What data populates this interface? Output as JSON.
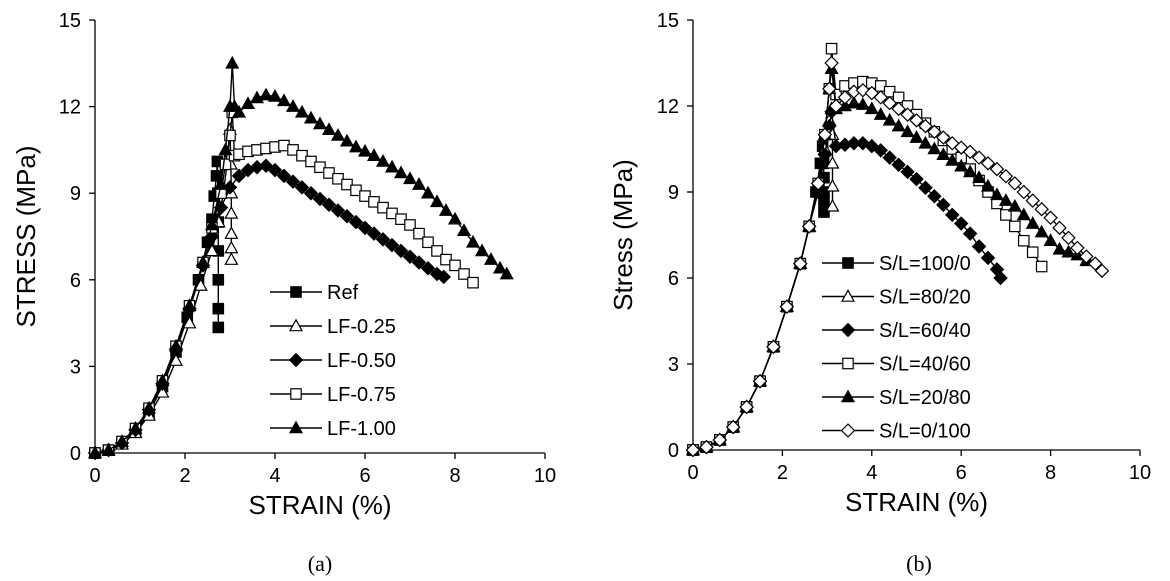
{
  "chart_data": [
    {
      "type": "line",
      "panel": "(a)",
      "xlabel": "STRAIN (%)",
      "ylabel": "STRESS (MPa)",
      "xlim": [
        0,
        10
      ],
      "ylim": [
        0,
        15
      ],
      "xticks": [
        0,
        2,
        4,
        6,
        8,
        10
      ],
      "yticks": [
        0,
        3,
        6,
        9,
        12,
        15
      ],
      "grid": false,
      "legend_placement": "bottom-right",
      "line_color": "#000000",
      "series": [
        {
          "name": "Ref",
          "marker": "square-filled",
          "x": [
            0,
            0.3,
            0.6,
            0.9,
            1.2,
            1.5,
            1.8,
            2.05,
            2.3,
            2.5,
            2.6,
            2.65,
            2.7,
            2.72,
            2.73,
            2.74,
            2.74,
            2.74,
            2.74,
            2.74
          ],
          "y": [
            0,
            0.1,
            0.35,
            0.75,
            1.4,
            2.3,
            3.5,
            4.7,
            6.0,
            7.3,
            8.1,
            8.9,
            9.6,
            10.1,
            9.0,
            8.0,
            7.0,
            6.0,
            5.0,
            4.35
          ]
        },
        {
          "name": "LF-0.25",
          "marker": "triangle-open",
          "x": [
            0,
            0.3,
            0.6,
            0.9,
            1.2,
            1.5,
            1.8,
            2.1,
            2.35,
            2.6,
            2.75,
            2.85,
            2.95,
            3.0,
            3.02,
            3.03,
            3.03,
            3.03,
            3.03,
            3.03
          ],
          "y": [
            0,
            0.08,
            0.3,
            0.7,
            1.3,
            2.1,
            3.2,
            4.5,
            5.8,
            7.0,
            8.0,
            9.0,
            10.2,
            11.2,
            10.0,
            9.0,
            8.3,
            7.6,
            7.1,
            6.7
          ]
        },
        {
          "name": "LF-0.50",
          "marker": "diamond-filled",
          "x": [
            0,
            0.3,
            0.6,
            0.9,
            1.2,
            1.5,
            1.8,
            2.1,
            2.4,
            2.6,
            2.8,
            3.0,
            3.2,
            3.4,
            3.6,
            3.8,
            4.0,
            4.2,
            4.4,
            4.6,
            4.8,
            5.0,
            5.2,
            5.4,
            5.6,
            5.8,
            6.0,
            6.2,
            6.4,
            6.6,
            6.8,
            7.0,
            7.2,
            7.4,
            7.6,
            7.75
          ],
          "y": [
            0,
            0.1,
            0.35,
            0.8,
            1.5,
            2.4,
            3.6,
            5.0,
            6.5,
            7.5,
            8.5,
            9.2,
            9.6,
            9.8,
            9.9,
            9.95,
            9.8,
            9.6,
            9.4,
            9.2,
            9.0,
            8.8,
            8.6,
            8.4,
            8.2,
            8.0,
            7.8,
            7.6,
            7.4,
            7.2,
            7.0,
            6.8,
            6.6,
            6.4,
            6.2,
            6.1
          ]
        },
        {
          "name": "LF-0.75",
          "marker": "square-open",
          "x": [
            0,
            0.3,
            0.6,
            0.9,
            1.2,
            1.5,
            1.8,
            2.1,
            2.4,
            2.6,
            2.8,
            2.9,
            3.0,
            3.05,
            3.1,
            3.2,
            3.4,
            3.6,
            3.8,
            4.0,
            4.2,
            4.4,
            4.6,
            4.8,
            5.0,
            5.2,
            5.4,
            5.6,
            5.8,
            6.0,
            6.2,
            6.4,
            6.6,
            6.8,
            7.0,
            7.2,
            7.4,
            7.6,
            7.8,
            8.0,
            8.2,
            8.4
          ],
          "y": [
            0,
            0.1,
            0.4,
            0.85,
            1.55,
            2.5,
            3.7,
            5.1,
            6.6,
            7.8,
            9.0,
            10.0,
            11.0,
            11.8,
            10.3,
            10.35,
            10.45,
            10.5,
            10.55,
            10.6,
            10.65,
            10.5,
            10.3,
            10.1,
            9.9,
            9.7,
            9.5,
            9.3,
            9.1,
            8.9,
            8.7,
            8.5,
            8.3,
            8.1,
            7.9,
            7.6,
            7.3,
            7.0,
            6.7,
            6.5,
            6.2,
            5.9
          ]
        },
        {
          "name": "LF-1.00",
          "marker": "triangle-filled",
          "x": [
            0,
            0.3,
            0.6,
            0.9,
            1.2,
            1.5,
            1.8,
            2.1,
            2.4,
            2.6,
            2.8,
            2.9,
            3.0,
            3.05,
            3.1,
            3.2,
            3.4,
            3.6,
            3.8,
            4.0,
            4.2,
            4.4,
            4.6,
            4.8,
            5.0,
            5.2,
            5.4,
            5.6,
            5.8,
            6.0,
            6.2,
            6.4,
            6.6,
            6.8,
            7.0,
            7.2,
            7.4,
            7.6,
            7.8,
            8.0,
            8.2,
            8.4,
            8.6,
            8.8,
            9.0,
            9.15
          ],
          "y": [
            0,
            0.1,
            0.4,
            0.85,
            1.55,
            2.5,
            3.7,
            5.1,
            6.6,
            7.9,
            9.3,
            10.5,
            12.0,
            13.5,
            12.0,
            11.8,
            12.1,
            12.3,
            12.4,
            12.35,
            12.2,
            12.0,
            11.8,
            11.6,
            11.4,
            11.2,
            11.0,
            10.8,
            10.6,
            10.45,
            10.3,
            10.1,
            9.9,
            9.7,
            9.5,
            9.3,
            9.0,
            8.7,
            8.4,
            8.1,
            7.7,
            7.3,
            7.0,
            6.7,
            6.4,
            6.2
          ]
        }
      ]
    },
    {
      "type": "line",
      "panel": "(b)",
      "xlabel": "STRAIN (%)",
      "ylabel": "Stress (MPa)",
      "xlim": [
        0,
        10
      ],
      "ylim": [
        0,
        15
      ],
      "xticks": [
        0,
        2,
        4,
        6,
        8,
        10
      ],
      "yticks": [
        0,
        3,
        6,
        9,
        12,
        15
      ],
      "grid": false,
      "legend_placement": "bottom-left",
      "line_color": "#000000",
      "series": [
        {
          "name": "S/L=100/0",
          "marker": "square-filled",
          "x": [
            0,
            0.3,
            0.6,
            0.9,
            1.2,
            1.5,
            1.8,
            2.1,
            2.4,
            2.6,
            2.75,
            2.85,
            2.9,
            2.92,
            2.93,
            2.93,
            2.93,
            2.93
          ],
          "y": [
            0,
            0.1,
            0.35,
            0.8,
            1.5,
            2.4,
            3.6,
            5.0,
            6.5,
            7.8,
            9.0,
            10.0,
            10.6,
            10.0,
            9.5,
            9.0,
            8.7,
            8.3
          ]
        },
        {
          "name": "S/L=80/20",
          "marker": "triangle-open",
          "x": [
            0,
            0.3,
            0.6,
            0.9,
            1.2,
            1.5,
            1.8,
            2.1,
            2.4,
            2.6,
            2.8,
            2.95,
            3.05,
            3.1,
            3.12,
            3.12,
            3.12,
            3.12
          ],
          "y": [
            0,
            0.1,
            0.35,
            0.8,
            1.5,
            2.4,
            3.6,
            5.0,
            6.5,
            7.8,
            9.2,
            10.5,
            11.5,
            11.9,
            11.0,
            10.0,
            9.2,
            8.5
          ]
        },
        {
          "name": "S/L=60/40",
          "marker": "diamond-filled",
          "x": [
            0,
            0.3,
            0.6,
            0.9,
            1.2,
            1.5,
            1.8,
            2.1,
            2.4,
            2.6,
            2.8,
            2.95,
            3.05,
            3.1,
            3.2,
            3.4,
            3.6,
            3.8,
            4.0,
            4.2,
            4.4,
            4.6,
            4.8,
            5.0,
            5.2,
            5.4,
            5.6,
            5.8,
            6.0,
            6.2,
            6.4,
            6.6,
            6.8,
            6.88
          ],
          "y": [
            0,
            0.1,
            0.35,
            0.8,
            1.5,
            2.4,
            3.6,
            5.0,
            6.5,
            7.8,
            9.0,
            10.3,
            11.3,
            11.8,
            10.6,
            10.65,
            10.7,
            10.7,
            10.6,
            10.45,
            10.2,
            9.95,
            9.7,
            9.45,
            9.15,
            8.85,
            8.55,
            8.2,
            7.9,
            7.55,
            7.1,
            6.7,
            6.3,
            6.0
          ]
        },
        {
          "name": "S/L=40/60",
          "marker": "square-open",
          "x": [
            0,
            0.3,
            0.6,
            0.9,
            1.2,
            1.5,
            1.8,
            2.1,
            2.4,
            2.6,
            2.8,
            2.95,
            3.05,
            3.1,
            3.2,
            3.4,
            3.6,
            3.8,
            4.0,
            4.2,
            4.4,
            4.6,
            4.8,
            5.0,
            5.2,
            5.4,
            5.6,
            5.8,
            6.0,
            6.2,
            6.4,
            6.6,
            6.8,
            7.0,
            7.2,
            7.4,
            7.6,
            7.8
          ],
          "y": [
            0,
            0.1,
            0.35,
            0.8,
            1.5,
            2.4,
            3.6,
            5.0,
            6.5,
            7.8,
            9.3,
            11.0,
            12.6,
            14.0,
            12.4,
            12.7,
            12.8,
            12.85,
            12.8,
            12.7,
            12.5,
            12.3,
            12.0,
            11.7,
            11.4,
            11.1,
            10.8,
            10.5,
            10.2,
            9.8,
            9.4,
            9.0,
            8.6,
            8.2,
            7.8,
            7.3,
            6.9,
            6.4
          ]
        },
        {
          "name": "S/L=20/80",
          "marker": "triangle-filled",
          "x": [
            0,
            0.3,
            0.6,
            0.9,
            1.2,
            1.5,
            1.8,
            2.1,
            2.4,
            2.6,
            2.8,
            2.95,
            3.05,
            3.1,
            3.2,
            3.4,
            3.6,
            3.8,
            4.0,
            4.2,
            4.4,
            4.6,
            4.8,
            5.0,
            5.2,
            5.4,
            5.6,
            5.8,
            6.0,
            6.2,
            6.4,
            6.6,
            6.8,
            7.0,
            7.2,
            7.4,
            7.6,
            7.8,
            8.0,
            8.2,
            8.4,
            8.6,
            8.8
          ],
          "y": [
            0,
            0.1,
            0.35,
            0.8,
            1.5,
            2.4,
            3.6,
            5.0,
            6.5,
            7.8,
            9.3,
            11.0,
            12.6,
            13.3,
            11.9,
            12.0,
            12.1,
            12.05,
            11.9,
            11.7,
            11.5,
            11.3,
            11.1,
            10.9,
            10.7,
            10.5,
            10.3,
            10.1,
            9.9,
            9.7,
            9.5,
            9.2,
            8.9,
            8.7,
            8.5,
            8.2,
            7.9,
            7.6,
            7.3,
            7.0,
            6.9,
            6.8,
            6.6
          ]
        },
        {
          "name": "S/L=0/100",
          "marker": "diamond-open",
          "x": [
            0,
            0.3,
            0.6,
            0.9,
            1.2,
            1.5,
            1.8,
            2.1,
            2.4,
            2.6,
            2.8,
            2.95,
            3.05,
            3.1,
            3.2,
            3.4,
            3.6,
            3.8,
            4.0,
            4.2,
            4.4,
            4.6,
            4.8,
            5.0,
            5.2,
            5.4,
            5.6,
            5.8,
            6.0,
            6.2,
            6.4,
            6.6,
            6.8,
            7.0,
            7.2,
            7.4,
            7.6,
            7.8,
            8.0,
            8.2,
            8.4,
            8.6,
            8.8,
            9.0,
            9.15
          ],
          "y": [
            0,
            0.1,
            0.35,
            0.8,
            1.5,
            2.4,
            3.6,
            5.0,
            6.5,
            7.8,
            9.3,
            11.0,
            12.6,
            13.5,
            12.0,
            12.3,
            12.5,
            12.55,
            12.45,
            12.3,
            12.1,
            11.9,
            11.7,
            11.5,
            11.3,
            11.1,
            10.9,
            10.7,
            10.55,
            10.4,
            10.2,
            10.0,
            9.8,
            9.55,
            9.3,
            9.0,
            8.7,
            8.4,
            8.1,
            7.75,
            7.4,
            7.05,
            6.75,
            6.5,
            6.25
          ]
        }
      ]
    }
  ],
  "captions": [
    "(a)",
    "(b)"
  ]
}
